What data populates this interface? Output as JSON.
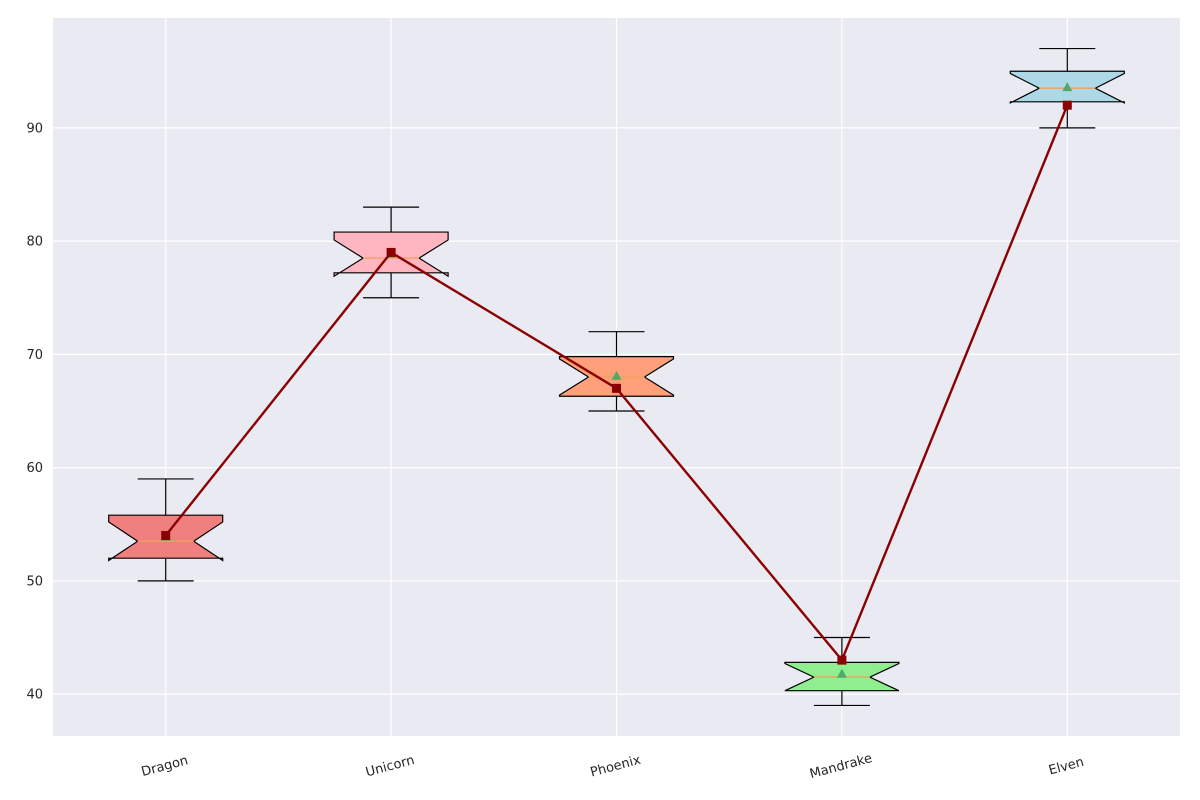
{
  "chart_data": {
    "type": "box",
    "title": "",
    "xlabel": "",
    "ylabel": "",
    "ylim": [
      36.3,
      99.7
    ],
    "yticks": [
      40,
      50,
      60,
      70,
      80,
      90
    ],
    "grid": true,
    "background": "#eaeaf2",
    "grid_color": "#ffffff",
    "categories": [
      "Dragon",
      "Unicorn",
      "Phoenix",
      "Mandrake",
      "Elven"
    ],
    "boxes": [
      {
        "category": "Dragon",
        "color": "#f08080",
        "whisker_low": 50,
        "q1": 52.0,
        "median": 53.5,
        "q3": 55.8,
        "whisker_high": 59,
        "mean": 53.9,
        "notch_low": 51.8,
        "notch_high": 55.2
      },
      {
        "category": "Unicorn",
        "color": "#ffb6c1",
        "whisker_low": 75,
        "q1": 77.2,
        "median": 78.5,
        "q3": 80.8,
        "whisker_high": 83,
        "mean": 78.9,
        "notch_low": 76.9,
        "notch_high": 80.1
      },
      {
        "category": "Phoenix",
        "color": "#ffa07a",
        "whisker_low": 65,
        "q1": 66.3,
        "median": 68.0,
        "q3": 69.8,
        "whisker_high": 72,
        "mean": 68.1,
        "notch_low": 66.4,
        "notch_high": 69.6
      },
      {
        "category": "Mandrake",
        "color": "#90ee90",
        "whisker_low": 39,
        "q1": 40.3,
        "median": 41.5,
        "q3": 42.8,
        "whisker_high": 45,
        "mean": 41.8,
        "notch_low": 40.3,
        "notch_high": 42.7
      },
      {
        "category": "Elven",
        "color": "#add8e6",
        "whisker_low": 90,
        "q1": 92.3,
        "median": 93.5,
        "q3": 95.0,
        "whisker_high": 97,
        "mean": 93.6,
        "notch_low": 92.2,
        "notch_high": 94.8
      }
    ],
    "series": [
      {
        "type": "line",
        "color": "#8b0000",
        "marker": "square",
        "values": [
          54,
          79,
          67,
          43,
          92
        ]
      }
    ],
    "median_color": "#f0a060",
    "mean_marker_color": "#55a868"
  }
}
